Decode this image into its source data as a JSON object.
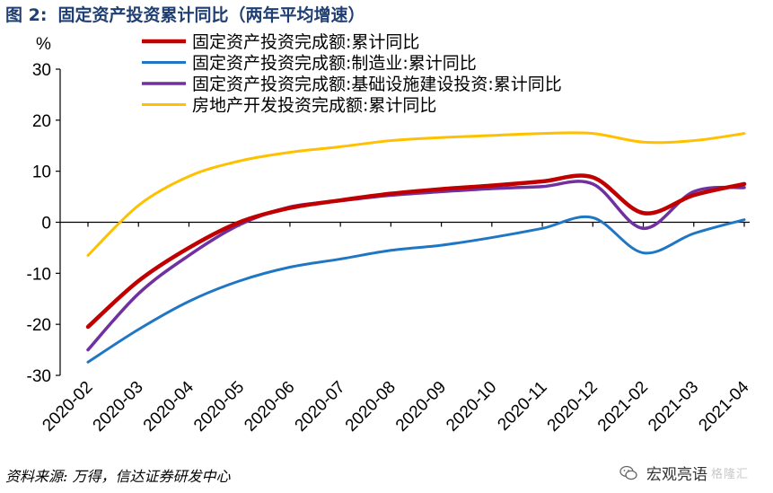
{
  "figure": {
    "label": "图 2:",
    "title": "固定资产投资累计同比（两年平均增速）"
  },
  "source": "资料来源: 万得，信达证券研发中心",
  "watermark": {
    "text": "宏观亮语",
    "mark": "格隆汇",
    "icon": "wechat-icon"
  },
  "chart_data": {
    "type": "line",
    "ylabel": "%",
    "ylim": [
      -30,
      30
    ],
    "yticks": [
      30,
      20,
      10,
      0,
      -10,
      -20,
      -30
    ],
    "categories": [
      "2020-02",
      "2020-03",
      "2020-04",
      "2020-05",
      "2020-06",
      "2020-07",
      "2020-08",
      "2020-09",
      "2020-10",
      "2020-11",
      "2020-12",
      "2021-02",
      "2021-03",
      "2021-04"
    ],
    "x_tick_labels": [
      "2020-02",
      "2020-03",
      "2020-04",
      "2020-05",
      "2020-06",
      "2020-07",
      "2020-08",
      "2020-09",
      "2020-10",
      "2020-11",
      "2020-12",
      "2021-02",
      "2021-03",
      "2021-04"
    ],
    "legend_position": "top",
    "grid": false,
    "series": [
      {
        "name": "固定资产投资完成额:累计同比",
        "color": "#c00000",
        "values": [
          -20.5,
          -11.5,
          -5.0,
          0.0,
          2.8,
          4.3,
          5.6,
          6.5,
          7.2,
          8.0,
          8.8,
          1.8,
          5.3,
          7.5
        ]
      },
      {
        "name": "固定资产投资完成额:制造业:累计同比",
        "color": "#1f77c4",
        "values": [
          -27.4,
          -21.0,
          -15.5,
          -11.5,
          -8.8,
          -7.2,
          -5.5,
          -4.5,
          -3.0,
          -1.2,
          0.9,
          -6.0,
          -2.2,
          0.5
        ]
      },
      {
        "name": "固定资产投资完成额:基础设施建设投资:累计同比",
        "color": "#7030a0",
        "values": [
          -25.0,
          -14.0,
          -6.5,
          -0.5,
          3.0,
          4.2,
          5.3,
          6.0,
          6.6,
          7.0,
          7.5,
          -1.2,
          6.0,
          6.8
        ]
      },
      {
        "name": "房地产开发投资完成额:累计同比",
        "color": "#ffc000",
        "values": [
          -6.5,
          3.3,
          9.0,
          12.0,
          13.7,
          14.8,
          16.0,
          16.6,
          17.0,
          17.4,
          17.4,
          15.7,
          16.0,
          17.4
        ]
      }
    ]
  }
}
